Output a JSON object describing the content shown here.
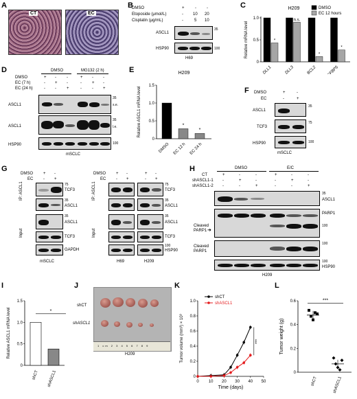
{
  "panels": {
    "A": {
      "label": "A",
      "ct": "CT",
      "ec": "EC"
    },
    "B": {
      "label": "B",
      "dmso": "DMSO",
      "etoposide": "Etoposide (μmol/L)",
      "cisplatin": "Cisplatin (μg/mL)",
      "dmso_vals": [
        "+",
        "-",
        "-"
      ],
      "etop_vals": [
        "-",
        "10",
        "20"
      ],
      "cis_vals": [
        "-",
        "5",
        "10"
      ],
      "ascl1": "ASCL1",
      "hsp90": "HSP90",
      "mw35": "35",
      "mw100": "100",
      "cell": "H69"
    },
    "C": {
      "label": "C",
      "title": "H209",
      "ylabel": "Relative mRNA level",
      "legend": [
        "DMSO",
        "EC 12 hours"
      ],
      "ns": "n.s."
    },
    "D": {
      "label": "D",
      "dmso": "DMSO",
      "mg132": "MG132 (2 h)",
      "rows": [
        "DMSO",
        "EC (7 h)",
        "EC (24 h)"
      ],
      "r1": [
        "+",
        "-",
        "-",
        "+",
        "-",
        "-"
      ],
      "r2": [
        "-",
        "+",
        "-",
        "-",
        "+",
        "-"
      ],
      "r3": [
        "-",
        "-",
        "+",
        "-",
        "-",
        "+"
      ],
      "ascl1": "ASCL1",
      "hsp90": "HSP90",
      "se": "s.e.",
      "le": "l.e.",
      "mw35": "35",
      "mw100": "100",
      "cell": "mSCLC"
    },
    "E": {
      "label": "E",
      "title": "H209",
      "ylabel": "Relative ASCL1 mRNA level",
      "ylabel_italic": "ASCL1"
    },
    "F": {
      "label": "F",
      "dmso": "DMSO",
      "ec": "EC",
      "dmso_vals": [
        "+",
        "-"
      ],
      "ec_vals": [
        "-",
        "+"
      ],
      "ascl1": "ASCL1",
      "tcf3": "TCF3",
      "hsp90": "HSP90",
      "mw35": "35",
      "mw75": "75",
      "mw100": "100",
      "cell": "mSCLC"
    },
    "G": {
      "label": "G",
      "dmso": "DMSO",
      "ec": "EC",
      "vals_a": [
        "+",
        "-"
      ],
      "vals_b": [
        "-",
        "+"
      ],
      "ip": "IP: ASCL1",
      "input": "Input",
      "tcf3": "TCF3",
      "ascl1": "ASCL1",
      "gapdh": "GAPDH",
      "hsp90": "HSP90",
      "mw35": "35",
      "mw75": "75",
      "mw100": "100",
      "cell1": "mSCLC",
      "cell2": "H69",
      "cell3": "H209"
    },
    "H": {
      "label": "H",
      "dmso": "DMSO",
      "ec": "E/C",
      "rows": [
        "CT",
        "shASCL1-1",
        "shASCL1-2"
      ],
      "r1": [
        "+",
        "-",
        "-",
        "+",
        "-",
        "-"
      ],
      "r2": [
        "-",
        "+",
        "-",
        "-",
        "+",
        "-"
      ],
      "r3": [
        "-",
        "-",
        "+",
        "-",
        "-",
        "+"
      ],
      "ascl1": "ASCL1",
      "parp1": "PARP1",
      "cleaved": "Cleaved",
      "parp1b": "PARP1",
      "hsp90": "HSP90",
      "mw35": "35",
      "mw100": "100",
      "cell": "H209"
    },
    "I": {
      "label": "I",
      "ylabel": "Relative ASCL1 mRNA level",
      "sig": "*"
    },
    "J": {
      "label": "J",
      "shct": "shCT",
      "shascl1": "shASCL1",
      "cell": "H209",
      "ruler": "1 cm 2 3 4 5 6 7 8 9"
    },
    "K": {
      "label": "K",
      "xlabel": "Time (days)",
      "ylabel": "Tumor volume (mm³) × 10³",
      "legend": [
        "shCT",
        "shASCL1"
      ],
      "sig": "***"
    },
    "L": {
      "label": "L",
      "ylabel": "Tumor weight (g)",
      "sig": "***"
    }
  },
  "chart_data": [
    {
      "type": "bar",
      "panel": "C",
      "title": "H209",
      "ylabel": "Relative mRNA level",
      "ylim": [
        0,
        1.0
      ],
      "categories": [
        "DLL1",
        "DLL3",
        "BCL2",
        "IGFBP5"
      ],
      "series": [
        {
          "name": "DMSO",
          "values": [
            1.0,
            1.0,
            1.0,
            1.0
          ]
        },
        {
          "name": "EC 12 hours",
          "values": [
            0.43,
            0.9,
            0.12,
            0.27
          ]
        }
      ],
      "yticks": [
        "0",
        "0.5",
        "1.0"
      ],
      "annotations": [
        "*",
        "n.s.",
        "*",
        "*"
      ],
      "colors": [
        "#000000",
        "#a6a6a6"
      ]
    },
    {
      "type": "bar",
      "panel": "E",
      "title": "H209",
      "ylabel": "Relative ASCL1 mRNA level",
      "ylim": [
        0,
        1.5
      ],
      "categories": [
        "DMSO",
        "EC 12 h",
        "EC 24 h"
      ],
      "values": [
        1.0,
        0.28,
        0.15
      ],
      "yticks": [
        "0",
        "0.5",
        "1.0",
        "1.5"
      ],
      "annotations": [
        "",
        "*",
        "*"
      ]
    },
    {
      "type": "bar",
      "panel": "I",
      "ylabel": "Relative ASCL1 mRNA level",
      "ylim": [
        0,
        1.5
      ],
      "categories": [
        "shCT",
        "shASCL1"
      ],
      "values": [
        1.0,
        0.38
      ],
      "yticks": [
        "0",
        "0.5",
        "1.0",
        "1.5"
      ]
    },
    {
      "type": "line",
      "panel": "K",
      "xlabel": "Time (days)",
      "ylabel": "Tumor volume (mm³) × 10³",
      "xlim": [
        0,
        50
      ],
      "ylim": [
        0,
        1.0
      ],
      "xticks": [
        "0",
        "10",
        "20",
        "30",
        "40",
        "50"
      ],
      "yticks": [
        "0",
        "0.2",
        "0.4",
        "0.6",
        "0.8",
        "1.0"
      ],
      "series": [
        {
          "name": "shCT",
          "x": [
            0,
            10,
            20,
            25,
            30,
            35,
            40
          ],
          "y": [
            0,
            0.01,
            0.02,
            0.12,
            0.28,
            0.45,
            0.65
          ],
          "color": "#000000"
        },
        {
          "name": "shASCL1",
          "x": [
            0,
            10,
            20,
            25,
            30,
            35,
            40
          ],
          "y": [
            0,
            0.0,
            0.01,
            0.05,
            0.12,
            0.18,
            0.28
          ],
          "color": "#e41a1c"
        }
      ]
    },
    {
      "type": "scatter",
      "panel": "L",
      "ylabel": "Tumor weight (g)",
      "ylim": [
        0,
        0.6
      ],
      "yticks": [
        "0",
        "0.2",
        "0.4",
        "0.6"
      ],
      "categories": [
        "shCT",
        "shASCL1"
      ],
      "series": [
        {
          "name": "shCT",
          "values": [
            0.52,
            0.47,
            0.44,
            0.5,
            0.49
          ]
        },
        {
          "name": "shASCL1",
          "values": [
            0.12,
            0.07,
            0.04,
            0.02,
            0.1
          ]
        }
      ],
      "means": [
        0.48,
        0.07
      ]
    }
  ]
}
